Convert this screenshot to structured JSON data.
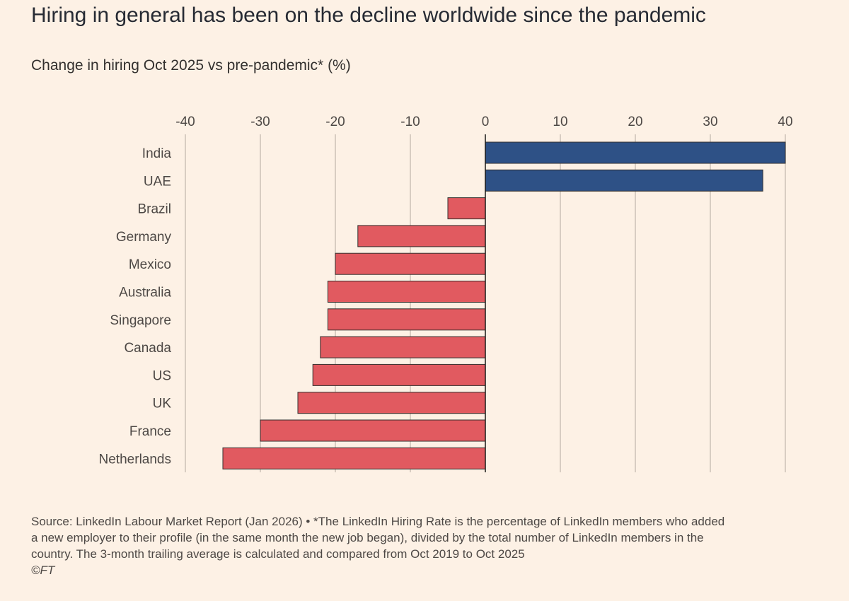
{
  "title": "Hiring in general has been on the decline worldwide since the pandemic",
  "subtitle": "Change in hiring Oct 2025 vs pre-pandemic* (%)",
  "footer": {
    "lines": [
      "Source: LinkedIn Labour Market Report (Jan 2026) • *The LinkedIn Hiring Rate is the percentage of LinkedIn members who added",
      "a new employer to their profile (in the same month the new job began), divided by the total number of LinkedIn members in the",
      "country. The 3-month trailing average is calculated and compared from Oct 2019 to Oct 2025"
    ],
    "copyright": "©FT"
  },
  "colors": {
    "background": "#fdf1e5",
    "positive": "#2e5186",
    "negative": "#e15a60",
    "gridline": "#ccc1b7",
    "bar_outline": "#33302e"
  },
  "chart_data": {
    "type": "bar",
    "orientation": "horizontal",
    "categories": [
      "India",
      "UAE",
      "Brazil",
      "Germany",
      "Mexico",
      "Australia",
      "Singapore",
      "Canada",
      "US",
      "UK",
      "France",
      "Netherlands"
    ],
    "values": [
      40,
      37,
      -5,
      -17,
      -20,
      -21,
      -21,
      -22,
      -23,
      -25,
      -30,
      -35
    ],
    "x_ticks": [
      -40,
      -30,
      -20,
      -10,
      0,
      10,
      20,
      30,
      40
    ],
    "x_tick_labels": [
      "-40",
      "-30",
      "-20",
      "-10",
      "0",
      "10",
      "20",
      "30",
      "40"
    ],
    "xlim": [
      -40,
      40
    ],
    "grid": true,
    "tick_position": "top",
    "title": "Hiring in general has been on the decline worldwide since the pandemic",
    "xlabel": "",
    "ylabel": ""
  }
}
